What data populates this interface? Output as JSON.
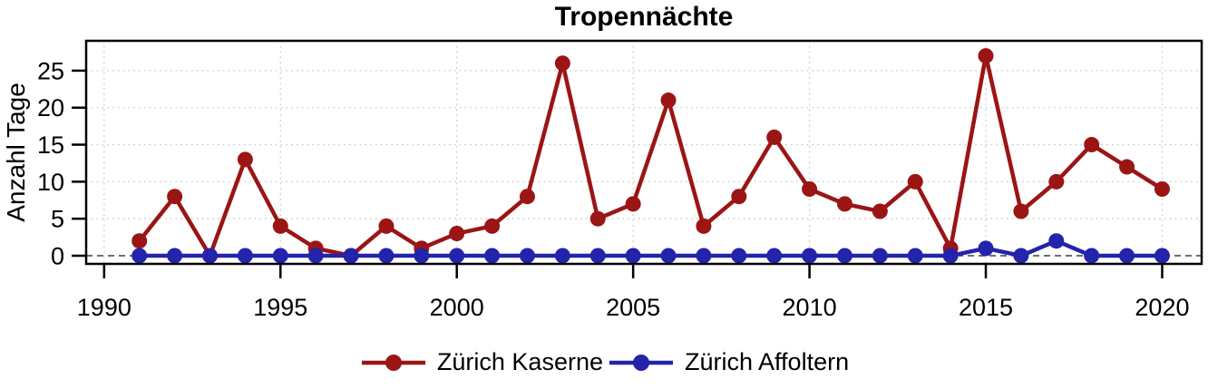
{
  "chart_data": {
    "type": "line",
    "title": "Tropennächte",
    "ylabel": "Anzahl Tage",
    "xlabel": "",
    "x": [
      1991,
      1992,
      1993,
      1994,
      1995,
      1996,
      1997,
      1998,
      1999,
      2000,
      2001,
      2002,
      2003,
      2004,
      2005,
      2006,
      2007,
      2008,
      2009,
      2010,
      2011,
      2012,
      2013,
      2014,
      2015,
      2016,
      2017,
      2018,
      2019,
      2020
    ],
    "series": [
      {
        "name": "Zürich Kaserne",
        "color": "#9B1515",
        "values": [
          2,
          8,
          0,
          13,
          4,
          1,
          0,
          4,
          1,
          3,
          4,
          8,
          26,
          5,
          7,
          21,
          4,
          8,
          16,
          9,
          7,
          6,
          10,
          1,
          27,
          6,
          10,
          15,
          12,
          9
        ]
      },
      {
        "name": "Zürich Affoltern",
        "color": "#2323AB",
        "values": [
          0,
          0,
          0,
          0,
          0,
          0,
          0,
          0,
          0,
          0,
          0,
          0,
          0,
          0,
          0,
          0,
          0,
          0,
          0,
          0,
          0,
          0,
          0,
          0,
          1,
          0,
          2,
          0,
          0,
          0
        ]
      }
    ],
    "xticks": [
      1990,
      1995,
      2000,
      2005,
      2010,
      2015,
      2020
    ],
    "yticks": [
      0,
      5,
      10,
      15,
      20,
      25
    ],
    "xlim": [
      1989.49,
      2021.12
    ],
    "ylim": [
      -1.1,
      29.03
    ],
    "grid": {
      "show": true,
      "color": "#C8C8C8",
      "style": "dotted"
    },
    "zero_line": {
      "value": 0,
      "color": "#404040",
      "style": "dashed"
    },
    "border_color": "#000000",
    "legend_position": "bottom"
  }
}
